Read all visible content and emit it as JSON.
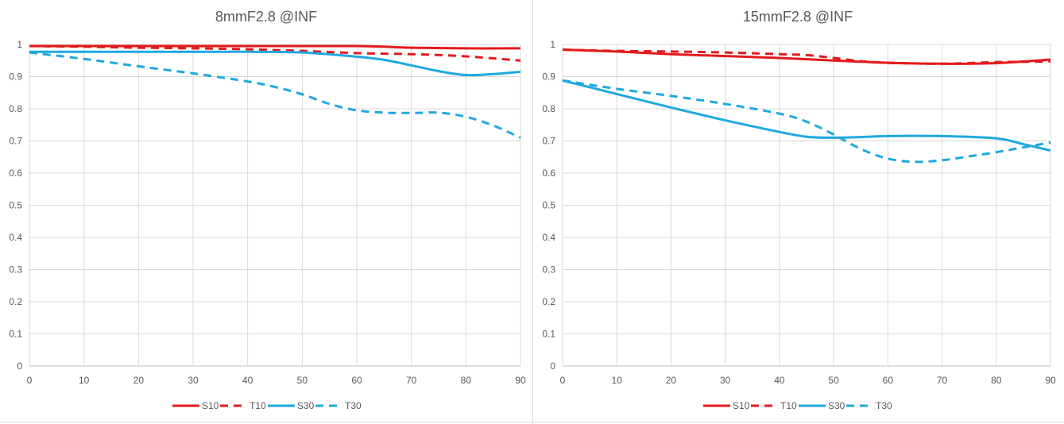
{
  "chart_data": [
    {
      "type": "line",
      "title": "8mmF2.8 @INF",
      "xlabel": "",
      "ylabel": "",
      "xlim": [
        0,
        90
      ],
      "ylim": [
        0,
        1
      ],
      "xticks": [
        "0",
        "10",
        "20",
        "30",
        "40",
        "50",
        "60",
        "70",
        "80",
        "90"
      ],
      "yticks": [
        "0",
        "0.1",
        "0.2",
        "0.3",
        "0.4",
        "0.5",
        "0.6",
        "0.7",
        "0.8",
        "0.9",
        "1"
      ],
      "grid": true,
      "legend_position": "bottom",
      "series": [
        {
          "name": "S10",
          "color": "#e31a1c",
          "dashed": false,
          "x": [
            0,
            10,
            20,
            30,
            40,
            50,
            60,
            65,
            70,
            80,
            90
          ],
          "y": [
            0.995,
            0.995,
            0.995,
            0.995,
            0.995,
            0.995,
            0.995,
            0.993,
            0.99,
            0.988,
            0.988
          ]
        },
        {
          "name": "T10",
          "color": "#e31a1c",
          "dashed": true,
          "x": [
            0,
            10,
            20,
            30,
            40,
            50,
            60,
            70,
            80,
            90
          ],
          "y": [
            0.995,
            0.993,
            0.99,
            0.988,
            0.985,
            0.98,
            0.973,
            0.97,
            0.963,
            0.95
          ]
        },
        {
          "name": "S30",
          "color": "#1fa8e0",
          "dashed": false,
          "x": [
            0,
            10,
            20,
            30,
            40,
            50,
            60,
            65,
            70,
            75,
            80,
            85,
            90
          ],
          "y": [
            0.977,
            0.977,
            0.977,
            0.977,
            0.977,
            0.975,
            0.962,
            0.952,
            0.935,
            0.917,
            0.905,
            0.908,
            0.915
          ]
        },
        {
          "name": "T30",
          "color": "#1fa8e0",
          "dashed": true,
          "x": [
            0,
            10,
            20,
            30,
            40,
            45,
            50,
            55,
            60,
            65,
            70,
            75,
            80,
            85,
            90
          ],
          "y": [
            0.975,
            0.955,
            0.932,
            0.91,
            0.885,
            0.868,
            0.845,
            0.815,
            0.795,
            0.788,
            0.787,
            0.788,
            0.775,
            0.748,
            0.71
          ]
        }
      ]
    },
    {
      "type": "line",
      "title": "15mmF2.8 @INF",
      "xlabel": "",
      "ylabel": "",
      "xlim": [
        0,
        90
      ],
      "ylim": [
        0,
        1
      ],
      "xticks": [
        "0",
        "10",
        "20",
        "30",
        "40",
        "50",
        "60",
        "70",
        "80",
        "90"
      ],
      "yticks": [
        "0",
        "0.1",
        "0.2",
        "0.3",
        "0.4",
        "0.5",
        "0.6",
        "0.7",
        "0.8",
        "0.9",
        "1"
      ],
      "grid": true,
      "legend_position": "bottom",
      "series": [
        {
          "name": "S10",
          "color": "#e31a1c",
          "dashed": false,
          "x": [
            0,
            10,
            20,
            30,
            40,
            50,
            60,
            70,
            80,
            90
          ],
          "y": [
            0.984,
            0.978,
            0.97,
            0.964,
            0.958,
            0.95,
            0.943,
            0.94,
            0.942,
            0.953
          ]
        },
        {
          "name": "T10",
          "color": "#e31a1c",
          "dashed": true,
          "x": [
            0,
            10,
            20,
            30,
            40,
            45,
            50,
            55,
            60,
            70,
            80,
            90
          ],
          "y": [
            0.984,
            0.98,
            0.978,
            0.975,
            0.97,
            0.967,
            0.958,
            0.948,
            0.943,
            0.94,
            0.945,
            0.947
          ]
        },
        {
          "name": "S30",
          "color": "#1fa8e0",
          "dashed": false,
          "x": [
            0,
            10,
            20,
            30,
            40,
            45,
            50,
            55,
            60,
            70,
            80,
            85,
            90
          ],
          "y": [
            0.888,
            0.846,
            0.804,
            0.764,
            0.728,
            0.713,
            0.71,
            0.712,
            0.715,
            0.715,
            0.708,
            0.69,
            0.67
          ]
        },
        {
          "name": "T30",
          "color": "#1fa8e0",
          "dashed": true,
          "x": [
            0,
            10,
            20,
            30,
            40,
            45,
            50,
            55,
            60,
            65,
            70,
            75,
            80,
            85,
            90
          ],
          "y": [
            0.888,
            0.862,
            0.84,
            0.815,
            0.785,
            0.76,
            0.72,
            0.675,
            0.645,
            0.635,
            0.64,
            0.652,
            0.665,
            0.68,
            0.695
          ]
        }
      ]
    }
  ]
}
